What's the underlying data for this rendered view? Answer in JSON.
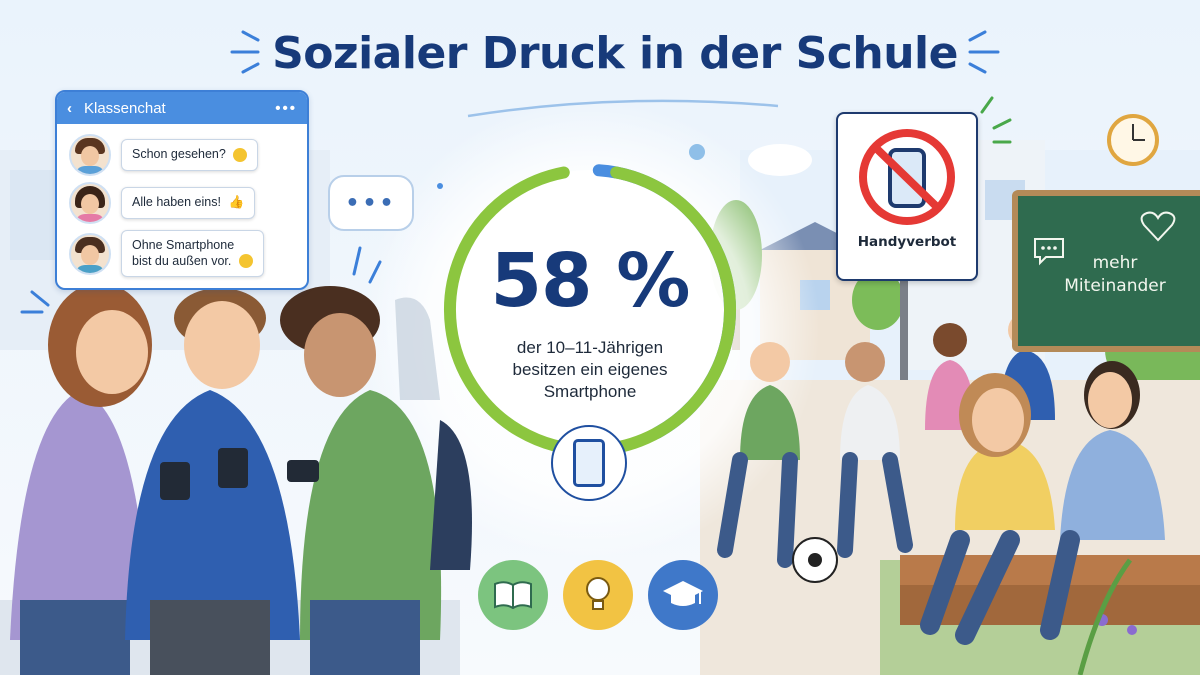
{
  "title": "Sozialer Druck in der Schule",
  "chat": {
    "header": "Klassenchat",
    "messages": [
      {
        "text": "Schon gesehen?",
        "emoji": "laughing-emoji"
      },
      {
        "text": "Alle haben eins!",
        "emoji": "thumbs-up-emoji"
      },
      {
        "line1": "Ohne Smartphone",
        "line2": "bist du außen vor.",
        "emoji": "sad-emoji"
      }
    ]
  },
  "stat": {
    "value": "58 %",
    "percent": 58,
    "caption_line1": "der 10–11-Jährigen",
    "caption_line2": "besitzen ein eigenes",
    "caption_line3": "Smartphone"
  },
  "sign": {
    "label": "Handyverbot",
    "icon": "crossed-phone-icon"
  },
  "board": {
    "line1": "mehr",
    "line2": "Miteinander",
    "icons": [
      "speech-bubble-icon",
      "heart-icon"
    ]
  },
  "bottom_icons": [
    "book-icon",
    "lightbulb-icon",
    "graduation-cap-icon"
  ],
  "colors": {
    "title": "#173a7a",
    "ring_blue": "#4a8ee0",
    "ring_green": "#8cc63f",
    "sign_red": "#e53935",
    "board_green": "#2f6b4f",
    "book_bg": "#7cc47f",
    "bulb_bg": "#f2c343",
    "cap_bg": "#3f78c9"
  }
}
